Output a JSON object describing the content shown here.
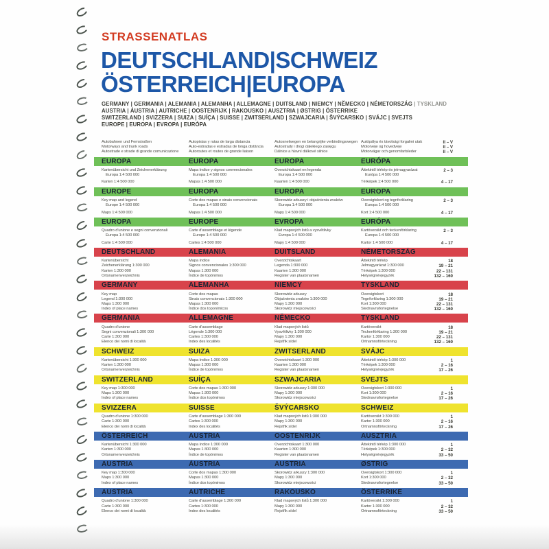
{
  "binding": {
    "mark_count": 30
  },
  "header": {
    "kicker": "STRASSENATLAS",
    "title_lines": [
      "DEUTSCHLAND|SCHWEIZ",
      "ÖSTERREICH|EUROPA"
    ],
    "subtitle_lines": [
      {
        "text": "GERMANY | GERMANIA | ALEMANIA | ALEMANHA | ALLEMAGNE | DUITSLAND | NIEMCY | NĚMECKO | NÉMETORSZÁG",
        "muted": "TYSKLAND"
      },
      {
        "text": "AUSTRIA | ÁUSTRIA | AUTRICHE | OOSTENRIJK | RAKOUSKO | AUSZTRIA | ØSTRIG | ÖSTERRIKE",
        "muted": ""
      },
      {
        "text": "SWITZERLAND | SVIZZERA | SUIZA | SUÍÇA | SUISSE | ZWITSERLAND | SZWAJCARIA | ŠVÝCARSKO | SVÁJC | SVEJTS",
        "muted": ""
      },
      {
        "text": "EUROPE | EUROPA | EVROPA | EURÓPA",
        "muted": ""
      }
    ],
    "colors": {
      "kicker_red": "#d23a20",
      "title_blue": "#1d57a7"
    }
  },
  "intro": {
    "lines": [
      {
        "cells": [
          "Autobahnen und Fernstraßen",
          "Autopistas y rutas de larga distancia",
          "Autosnelwegen en belangrijke verbindingswegen",
          "Autópálya és távolsági forgalmi utak"
        ],
        "page": "II – V"
      },
      {
        "cells": [
          "Motorways and trunk roads",
          "Auto-estradas e estradas de longa distância",
          "Autostrady i drogi dalekiego zasięgu",
          "Motorveje og hovedveje"
        ],
        "page": "II – V"
      },
      {
        "cells": [
          "Autostrade e strade di grande comunicazione",
          "Autoroutes et routes de grande liaison",
          "Dálnice a hlavní dálkové silnice",
          "Motorvägar och genomfartsleder"
        ],
        "page": "II – V"
      }
    ]
  },
  "band_colors": {
    "green": "#6fc058",
    "red": "#d8434b",
    "yellow": "#efe32e",
    "blue": "#3d6ab1"
  },
  "sections": [
    {
      "color_key": "green",
      "headings": [
        "EUROPA",
        "EUROPA",
        "EUROPA",
        "EURÓPA"
      ],
      "lines": [
        {
          "cells": [
            "Kartenübersicht und Zeichenerklärung",
            "Mapa índice y signos convencionales",
            "Overzichtskaart en legenda",
            "Áttekintő térkép és jelmagyarázat"
          ],
          "page": "2 – 3"
        },
        {
          "cells": [
            "Europa 1:4 500 000",
            "Europa 1:4 500 000",
            "Europa 1:4 500 000",
            "Európa 1:4 500 000"
          ],
          "indent": true
        },
        {
          "cells": [
            "Karten 1:4 500 000",
            "Mapas 1:4 500 000",
            "Kaarten 1:4 500 000",
            "Térképek 1:4 500 000"
          ],
          "page": "4 – 17",
          "gap": true
        }
      ]
    },
    {
      "color_key": "green",
      "headings": [
        "EUROPE",
        "EUROPA",
        "EUROPA",
        "EUROPA"
      ],
      "lines": [
        {
          "cells": [
            "Key map and legend",
            "Corte dos mapas e sinais convencionais",
            "Skorowidz arkuszy i objaśnienia znaków",
            "Oversigtskort og tegnforklaring"
          ],
          "page": "2 – 3"
        },
        {
          "cells": [
            "Europe 1:4 500 000",
            "Europa 1:4 500 000",
            "Europa 1:4 500 000",
            "Europa 1:4 500 000"
          ],
          "indent": true
        },
        {
          "cells": [
            "Maps 1:4 500 000",
            "Mapas 1:4 500 000",
            "Mapy 1:4 500 000",
            "Kort 1:4 500 000"
          ],
          "page": "4 – 17",
          "gap": true
        }
      ]
    },
    {
      "color_key": "green",
      "headings": [
        "EUROPA",
        "EUROPE",
        "EVROPA",
        "EURÓPA"
      ],
      "lines": [
        {
          "cells": [
            "Quadro d'unione e segni convenzionali",
            "Carte d'assemblage et légende",
            "Klad mapových listů a vysvětlivky",
            "Kartöversikt och teckenförklaring"
          ],
          "page": "2 – 3"
        },
        {
          "cells": [
            "Europa 1:4 500 000",
            "Europe 1:4 500 000",
            "Evropa 1:4 500 000",
            "Europa 1:4 500 000"
          ],
          "indent": true
        },
        {
          "cells": [
            "Carte 1:4 500 000",
            "Cartes 1:4 500 000",
            "Mapy 1:4 500 000",
            "Kartor 1:4 500 000"
          ],
          "page": "4 – 17",
          "gap": true
        }
      ]
    },
    {
      "color_key": "red",
      "headings": [
        "DEUTSCHLAND",
        "ALEMANIA",
        "DUITSLAND",
        "NÉMETORSZÁG"
      ],
      "lines": [
        {
          "cells": [
            "Kartenübersicht",
            "Mapa índice",
            "Overzichtskaart",
            "Áttekintő térkép"
          ],
          "page": "18"
        },
        {
          "cells": [
            "Zeichenerklärung 1:300 000",
            "Signos convencionales 1:300 000",
            "Legenda 1:300 000",
            "Jelmagyarázat 1:300 000"
          ],
          "page": "19 – 21"
        },
        {
          "cells": [
            "Karten 1:300 000",
            "Mapas 1:300 000",
            "Kaarten 1:300 000",
            "Térképek 1:300 000"
          ],
          "page": "22 – 131"
        },
        {
          "cells": [
            "Ortsnamenverzeichnis",
            "Índice de topónimos",
            "Register van plaatsnamen",
            "Helységnévjegyzék"
          ],
          "page": "132 – 160"
        }
      ]
    },
    {
      "color_key": "red",
      "headings": [
        "GERMANY",
        "ALEMANHA",
        "NIEMCY",
        "TYSKLAND"
      ],
      "lines": [
        {
          "cells": [
            "Key map",
            "Corte dos mapas",
            "Skorowidz arkuszy",
            "Oversigtskort"
          ],
          "page": "18"
        },
        {
          "cells": [
            "Legend 1:300 000",
            "Sinais convencionais 1:300 000",
            "Objaśnienia znaków 1:300 000",
            "Tegnforklaring 1:300 000"
          ],
          "page": "19 – 21"
        },
        {
          "cells": [
            "Maps 1:300 000",
            "Mapas 1:300 000",
            "Mapy 1:300 000",
            "Kort 1:300 000"
          ],
          "page": "22 – 131"
        },
        {
          "cells": [
            "Index of place names",
            "Índice dos toponímicos",
            "Skorowidz miejscowości",
            "Stednavnsfortegnelse"
          ],
          "page": "132 – 160"
        }
      ]
    },
    {
      "color_key": "red",
      "headings": [
        "GERMANIA",
        "ALLEMAGNE",
        "NĚMECKO",
        "TYSKLAND"
      ],
      "lines": [
        {
          "cells": [
            "Quadro d'unione",
            "Carte d'assemblage",
            "Klad mapových listů",
            "Kartöversikt"
          ],
          "page": "18"
        },
        {
          "cells": [
            "Segni convenzionali 1:300 000",
            "Légende 1:300 000",
            "Vysvětlivky 1:300 000",
            "Teckenförklaring 1:300 000"
          ],
          "page": "19 – 21"
        },
        {
          "cells": [
            "Carte 1:300 000",
            "Cartes 1:300 000",
            "Mapy 1:300 000",
            "Kartor 1:300 000"
          ],
          "page": "22 – 131"
        },
        {
          "cells": [
            "Elenco dei nomi di località",
            "Index des localités",
            "Rejstřík sídel",
            "Ortnamnsförteckning"
          ],
          "page": "132 – 160"
        }
      ]
    },
    {
      "color_key": "yellow",
      "headings": [
        "SCHWEIZ",
        "SUIZA",
        "ZWITSERLAND",
        "SVÁJC"
      ],
      "lines": [
        {
          "cells": [
            "Kartenübersicht 1:300 000",
            "Mapa índice 1:300 000",
            "Overzichtskaart 1:300 000",
            "Áttekintő térkép 1:300 000"
          ],
          "page": "1"
        },
        {
          "cells": [
            "Karten 1:300 000",
            "Mapas 1:300 000",
            "Kaarten 1:300 000",
            "Térképek 1:300 000"
          ],
          "page": "2 – 16"
        },
        {
          "cells": [
            "Ortsnamenverzeichnis",
            "Índice de topónimos",
            "Register van plaatsnamen",
            "Helységnévjegyzék"
          ],
          "page": "17 – 26"
        }
      ]
    },
    {
      "color_key": "yellow",
      "headings": [
        "SWITZERLAND",
        "SUÍÇA",
        "SZWAJCARIA",
        "SVEJTS"
      ],
      "lines": [
        {
          "cells": [
            "Key map 1:300 000",
            "Corte dos mapas 1:300 000",
            "Skorowidz arkuszy 1:300 000",
            "Oversigtskort 1:300 000"
          ],
          "page": "1"
        },
        {
          "cells": [
            "Maps 1:300 000",
            "Mapas 1:300 000",
            "Mapy 1:300 000",
            "Kort 1:300 000"
          ],
          "page": "2 – 16"
        },
        {
          "cells": [
            "Index of place names",
            "Índice dos topónimos",
            "Skorowidz miejscowości",
            "Stednavnsfortegnelse"
          ],
          "page": "17 – 26"
        }
      ]
    },
    {
      "color_key": "yellow",
      "headings": [
        "SVIZZERA",
        "SUISSE",
        "ŠVÝCARSKO",
        "SCHWEIZ"
      ],
      "lines": [
        {
          "cells": [
            "Quadro d'unione 1:300 000",
            "Carte d'assemblage 1:300 000",
            "Klad mapových listů 1:300 000",
            "Kartöversikt 1:300 000"
          ],
          "page": "1"
        },
        {
          "cells": [
            "Carte 1:300 000",
            "Cartes 1:300 000",
            "Mapy 1:300 000",
            "Kartor 1:300 000"
          ],
          "page": "2 – 16"
        },
        {
          "cells": [
            "Elenco dei nomi di località",
            "Index des localités",
            "Rejstřík sídel",
            "Ortnamnsförteckning"
          ],
          "page": "17 – 26"
        }
      ]
    },
    {
      "color_key": "blue",
      "headings": [
        "ÖSTERREICH",
        "AUSTRIA",
        "OOSTENRIJK",
        "AUSZTRIA"
      ],
      "lines": [
        {
          "cells": [
            "Kartenübersicht 1:300 000",
            "Mapa índice 1:300 000",
            "Overzichtskaart 1:300 000",
            "Áttekintő térkép 1:300 000"
          ],
          "page": "1"
        },
        {
          "cells": [
            "Karten 1:300 000",
            "Mapas 1:300 000",
            "Kaarten 1:300 000",
            "Térképek 1:300 000"
          ],
          "page": "2 – 32"
        },
        {
          "cells": [
            "Ortsnamenverzeichnis",
            "Índice de topónimos",
            "Register van plaatsnamen",
            "Helységnévjegyzék"
          ],
          "page": "33 – 50"
        }
      ]
    },
    {
      "color_key": "blue",
      "headings": [
        "AUSTRIA",
        "ÁUSTRIA",
        "AUSTRIA",
        "ØSTRIG"
      ],
      "lines": [
        {
          "cells": [
            "Key map 1:300 000",
            "Corte dos mapas 1:300 000",
            "Skorowidz arkuszy 1:300 000",
            "Oversigtskort 1:300 000"
          ],
          "page": "1"
        },
        {
          "cells": [
            "Maps 1:300 000",
            "Mapas 1:300 000",
            "Mapy 1:300 000",
            "Kort 1:300 000"
          ],
          "page": "2 – 32"
        },
        {
          "cells": [
            "Index of place names",
            "Índice dos topónimos",
            "Skorowidz miejscowości",
            "Stednavnsfortegnelse"
          ],
          "page": "33 – 50"
        }
      ]
    },
    {
      "color_key": "blue",
      "headings": [
        "AUSTRIA",
        "AUTRICHE",
        "RAKOUSKO",
        "ÖSTERRIKE"
      ],
      "lines": [
        {
          "cells": [
            "Quadro d'unione 1:300 000",
            "Carte d'assemblage 1:300 000",
            "Klad mapových listů 1:300 000",
            "Kartöversikt 1:300 000"
          ],
          "page": "1"
        },
        {
          "cells": [
            "Carte 1:300 000",
            "Cartes 1:300 000",
            "Mapy 1:300 000",
            "Kartor 1:300 000"
          ],
          "page": "2 – 32"
        },
        {
          "cells": [
            "Elenco dei nomi di località",
            "Index des localités",
            "Rejstřík sídel",
            "Ortnamnsförteckning"
          ],
          "page": "33 – 50"
        }
      ]
    }
  ]
}
